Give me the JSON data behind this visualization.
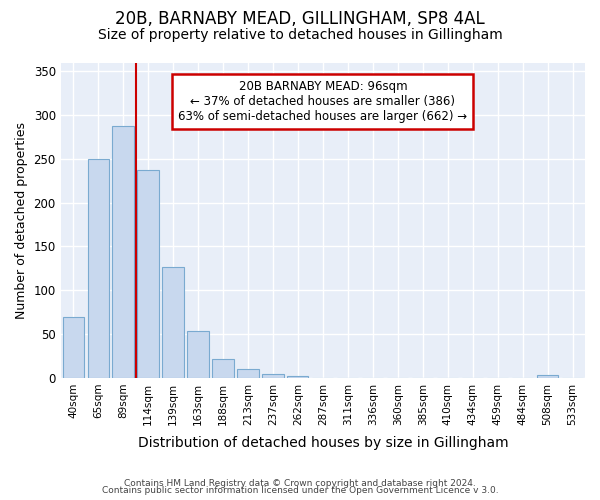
{
  "title1": "20B, BARNABY MEAD, GILLINGHAM, SP8 4AL",
  "title2": "Size of property relative to detached houses in Gillingham",
  "xlabel": "Distribution of detached houses by size in Gillingham",
  "ylabel": "Number of detached properties",
  "categories": [
    "40sqm",
    "65sqm",
    "89sqm",
    "114sqm",
    "139sqm",
    "163sqm",
    "188sqm",
    "213sqm",
    "237sqm",
    "262sqm",
    "287sqm",
    "311sqm",
    "336sqm",
    "360sqm",
    "385sqm",
    "410sqm",
    "434sqm",
    "459sqm",
    "484sqm",
    "508sqm",
    "533sqm"
  ],
  "values": [
    70,
    250,
    287,
    237,
    127,
    53,
    22,
    10,
    4,
    2,
    0,
    0,
    0,
    0,
    0,
    0,
    0,
    0,
    0,
    3,
    0
  ],
  "bar_color": "#c8d8ee",
  "bar_edge_color": "#7aaad0",
  "plot_bg_color": "#e8eef8",
  "fig_bg_color": "#ffffff",
  "grid_color": "#ffffff",
  "red_line_x": 2.5,
  "property_label": "20B BARNABY MEAD: 96sqm",
  "annotation_line1": "← 37% of detached houses are smaller (386)",
  "annotation_line2": "63% of semi-detached houses are larger (662) →",
  "annotation_box_color": "#ffffff",
  "annotation_border_color": "#cc0000",
  "red_line_color": "#cc0000",
  "ylim": [
    0,
    360
  ],
  "yticks": [
    0,
    50,
    100,
    150,
    200,
    250,
    300,
    350
  ],
  "title1_fontsize": 12,
  "title2_fontsize": 10,
  "xlabel_fontsize": 10,
  "ylabel_fontsize": 9,
  "footer1": "Contains HM Land Registry data © Crown copyright and database right 2024.",
  "footer2": "Contains public sector information licensed under the Open Government Licence v 3.0."
}
